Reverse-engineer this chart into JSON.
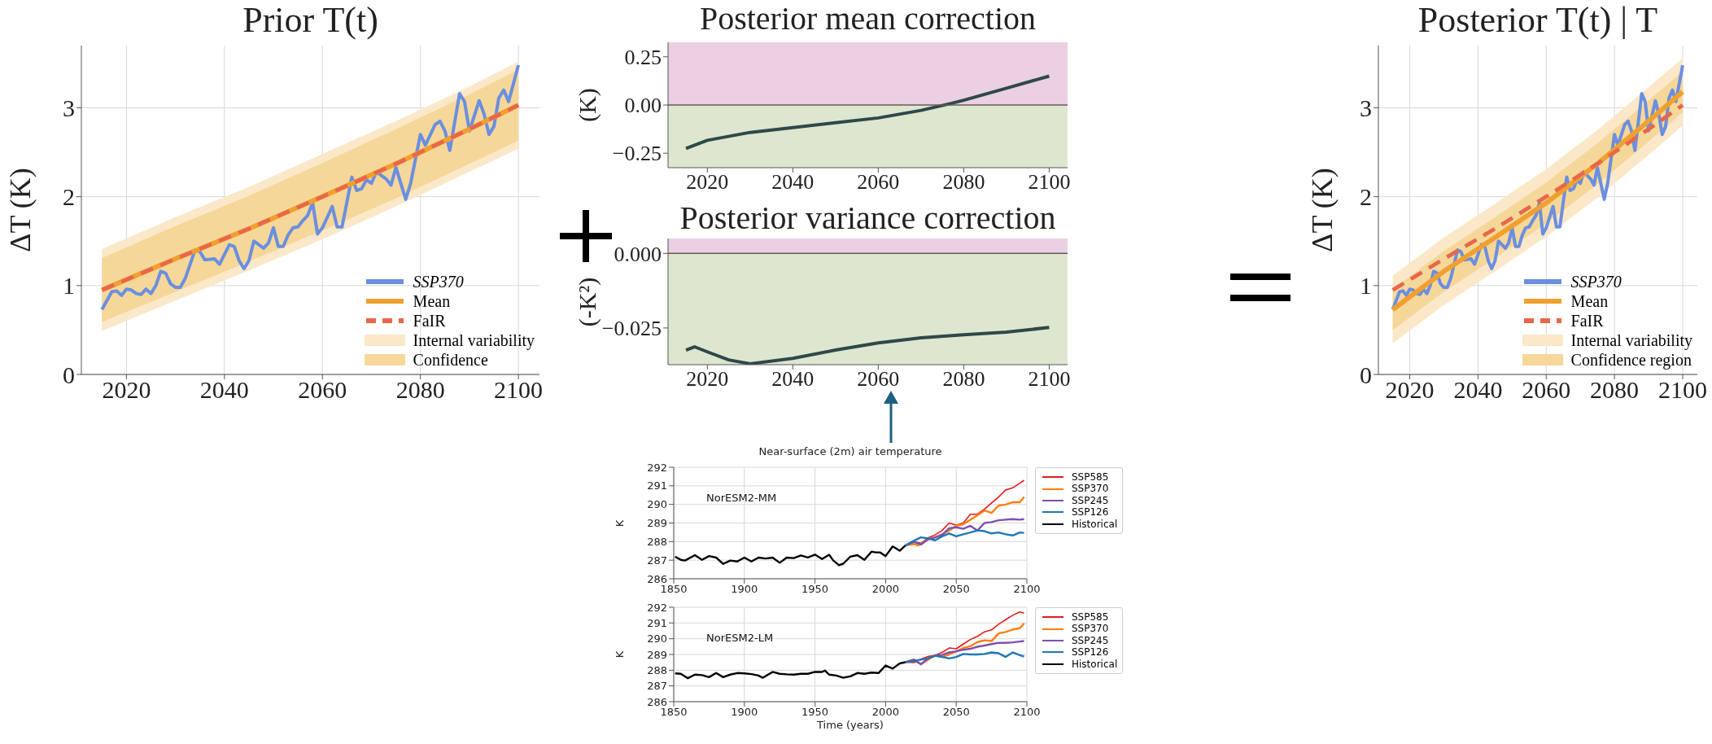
{
  "chart_data": [
    {
      "type": "line",
      "title": "Prior T(t)",
      "ylabel": "ΔT (K)",
      "xlim": [
        2010.8,
        2104.3
      ],
      "xticks": [
        2020,
        2040,
        2060,
        2080,
        2100
      ],
      "ylim": [
        0,
        3.7
      ],
      "yticks": [
        0,
        1,
        2,
        3
      ],
      "grid": true,
      "legend": "bottom right",
      "series": [
        {
          "name": "Internal variability",
          "type": "area",
          "color": "#fbe8c8",
          "x": [
            2015,
            2030,
            2045,
            2060,
            2075,
            2090,
            2100
          ],
          "values": [
            null,
            null,
            null,
            null,
            null,
            null,
            null
          ],
          "lower": [
            0.49,
            0.83,
            1.17,
            1.52,
            1.89,
            2.28,
            2.54
          ],
          "upper": [
            1.41,
            1.77,
            2.11,
            2.48,
            2.85,
            3.24,
            3.52
          ]
        },
        {
          "name": "Confidence",
          "type": "area",
          "color": "#f6d79a",
          "x": [
            2015,
            2030,
            2045,
            2060,
            2075,
            2090,
            2100
          ],
          "values": [
            null,
            null,
            null,
            null,
            null,
            null,
            null
          ],
          "lower": [
            0.59,
            0.93,
            1.27,
            1.62,
            1.98,
            2.37,
            2.63
          ],
          "upper": [
            1.31,
            1.67,
            2.01,
            2.38,
            2.76,
            3.15,
            3.43
          ]
        },
        {
          "name": "SSP370",
          "type": "line",
          "color": "#6a8fe0",
          "x": [
            2015,
            2017,
            2018,
            2019,
            2020,
            2021,
            2022,
            2023,
            2024,
            2025,
            2026,
            2027,
            2028,
            2029,
            2030,
            2031,
            2032,
            2034,
            2035,
            2036,
            2038,
            2039,
            2041,
            2042,
            2043,
            2044,
            2045,
            2046,
            2048,
            2049,
            2050,
            2051,
            2052,
            2053,
            2054,
            2055,
            2056,
            2057,
            2058,
            2059,
            2060,
            2061,
            2062,
            2063,
            2064,
            2066,
            2067,
            2068,
            2069,
            2070,
            2071,
            2073,
            2074,
            2075,
            2077,
            2078,
            2080,
            2081,
            2083,
            2084,
            2085,
            2086,
            2088,
            2089,
            2090,
            2092,
            2093,
            2094,
            2095,
            2096,
            2097,
            2098,
            2100
          ],
          "values": [
            0.73,
            0.93,
            0.94,
            0.89,
            0.96,
            0.95,
            0.91,
            0.9,
            0.96,
            0.91,
            1.0,
            1.16,
            1.14,
            1.02,
            0.98,
            0.98,
            1.08,
            1.4,
            1.38,
            1.29,
            1.3,
            1.24,
            1.46,
            1.44,
            1.28,
            1.19,
            1.28,
            1.5,
            1.42,
            1.48,
            1.65,
            1.44,
            1.44,
            1.57,
            1.65,
            1.66,
            1.73,
            1.79,
            1.93,
            1.58,
            1.65,
            1.77,
            1.89,
            1.66,
            1.66,
            2.22,
            2.07,
            2.09,
            2.19,
            2.15,
            2.28,
            2.2,
            2.13,
            2.33,
            1.97,
            2.15,
            2.7,
            2.58,
            2.81,
            2.85,
            2.74,
            2.52,
            3.16,
            3.07,
            2.74,
            3.08,
            2.93,
            2.7,
            2.79,
            3.11,
            3.2,
            3.07,
            3.48
          ]
        },
        {
          "name": "Mean",
          "type": "line",
          "color": "#f0a030",
          "x": [
            2015,
            2030,
            2045,
            2060,
            2075,
            2090,
            2100
          ],
          "values": [
            0.95,
            1.3,
            1.64,
            2.0,
            2.37,
            2.76,
            3.03
          ]
        },
        {
          "name": "FaIR",
          "type": "line",
          "line_style": "dashed",
          "color": "#e8674a",
          "x": [
            2015,
            2030,
            2045,
            2060,
            2075,
            2090,
            2100
          ],
          "values": [
            0.95,
            1.3,
            1.64,
            2.0,
            2.37,
            2.76,
            3.03
          ]
        }
      ]
    },
    {
      "type": "line",
      "title": "Posterior mean correction",
      "ylabel": "(K)",
      "xlim": [
        2010.8,
        2104.3
      ],
      "xticks": [
        2020,
        2040,
        2060,
        2080,
        2100
      ],
      "ylim": [
        -0.325,
        0.325
      ],
      "yticks": [
        {
          "value": -0.25,
          "label": "−0.25"
        },
        {
          "value": 0,
          "label": "0.00"
        },
        0.25
      ],
      "grid": true,
      "bands": [
        {
          "axis": "y",
          "from": 0,
          "to": 0.325,
          "color": "#ead0e2"
        },
        {
          "axis": "y",
          "from": -0.325,
          "to": 0,
          "color": "#dde7d0"
        }
      ],
      "ref_lines": [
        {
          "axis": "y",
          "value": 0,
          "color": "#6b5858"
        }
      ],
      "series": [
        {
          "type": "line",
          "color": "#2f4848",
          "x": [
            2015,
            2020,
            2030,
            2040,
            2050,
            2060,
            2070,
            2077,
            2080,
            2090,
            2100
          ],
          "values": [
            -0.225,
            -0.183,
            -0.142,
            -0.117,
            -0.092,
            -0.067,
            -0.028,
            0.008,
            0.025,
            0.087,
            0.15
          ]
        }
      ]
    },
    {
      "type": "line",
      "title": "Posterior variance correction",
      "ylabel": "(-K²)",
      "xlim": [
        2010.8,
        2104.3
      ],
      "xticks": [
        2020,
        2040,
        2060,
        2080,
        2100
      ],
      "ylim": [
        -0.0373,
        0.005
      ],
      "yticks": [
        {
          "value": -0.025,
          "label": "−0.025"
        },
        {
          "value": 0,
          "label": "0.000"
        }
      ],
      "grid": true,
      "bands": [
        {
          "axis": "y",
          "from": 0,
          "to": 0.005,
          "color": "#ead0e2"
        },
        {
          "axis": "y",
          "from": -0.0373,
          "to": 0,
          "color": "#dde7d0"
        }
      ],
      "ref_lines": [
        {
          "axis": "y",
          "value": 0,
          "color": "#6b5858"
        }
      ],
      "series": [
        {
          "type": "line",
          "color": "#2f4848",
          "x": [
            2015,
            2017,
            2020,
            2025,
            2030,
            2040,
            2050,
            2060,
            2070,
            2080,
            2090,
            2100
          ],
          "values": [
            -0.0324,
            -0.0313,
            -0.033,
            -0.0357,
            -0.037,
            -0.0352,
            -0.0324,
            -0.03,
            -0.0283,
            -0.0273,
            -0.0264,
            -0.0248
          ]
        }
      ]
    },
    {
      "type": "line",
      "title": "Posterior T(t) | T",
      "ylabel": "ΔT (K)",
      "xlim": [
        2010.8,
        2104.3
      ],
      "xticks": [
        2020,
        2040,
        2060,
        2080,
        2100
      ],
      "ylim": [
        0,
        3.7
      ],
      "yticks": [
        0,
        1,
        2,
        3
      ],
      "grid": true,
      "legend": "bottom right",
      "series": [
        {
          "name": "Internal variability",
          "type": "area",
          "color": "#fbe8c8",
          "x": [
            2015,
            2030,
            2045,
            2060,
            2075,
            2090,
            2100
          ],
          "values": [
            null,
            null,
            null,
            null,
            null,
            null,
            null
          ],
          "lower": [
            0.35,
            0.78,
            1.16,
            1.55,
            1.99,
            2.47,
            2.8
          ],
          "upper": [
            1.11,
            1.54,
            1.92,
            2.31,
            2.75,
            3.23,
            3.56
          ]
        },
        {
          "name": "Confidence region",
          "type": "area",
          "color": "#f6d79a",
          "x": [
            2015,
            2030,
            2045,
            2060,
            2075,
            2090,
            2100
          ],
          "values": [
            null,
            null,
            null,
            null,
            null,
            null,
            null
          ],
          "lower": [
            0.5,
            0.93,
            1.31,
            1.7,
            2.14,
            2.62,
            2.95
          ],
          "upper": [
            0.96,
            1.39,
            1.77,
            2.16,
            2.6,
            3.08,
            3.41
          ]
        },
        {
          "name": "SSP370",
          "type": "line",
          "color": "#6a8fe0",
          "x": [
            2015,
            2017,
            2018,
            2019,
            2020,
            2021,
            2022,
            2023,
            2024,
            2025,
            2026,
            2027,
            2028,
            2029,
            2030,
            2031,
            2032,
            2034,
            2035,
            2036,
            2038,
            2039,
            2041,
            2042,
            2043,
            2044,
            2045,
            2046,
            2048,
            2049,
            2050,
            2051,
            2052,
            2053,
            2054,
            2055,
            2056,
            2057,
            2058,
            2059,
            2060,
            2061,
            2062,
            2063,
            2064,
            2066,
            2067,
            2068,
            2069,
            2070,
            2071,
            2073,
            2074,
            2075,
            2077,
            2078,
            2080,
            2081,
            2083,
            2084,
            2085,
            2086,
            2088,
            2089,
            2090,
            2092,
            2093,
            2094,
            2095,
            2096,
            2097,
            2098,
            2100
          ],
          "values": [
            0.73,
            0.93,
            0.94,
            0.89,
            0.96,
            0.95,
            0.91,
            0.9,
            0.96,
            0.91,
            1.0,
            1.16,
            1.14,
            1.02,
            0.98,
            0.98,
            1.08,
            1.4,
            1.38,
            1.29,
            1.3,
            1.24,
            1.46,
            1.44,
            1.28,
            1.19,
            1.28,
            1.5,
            1.42,
            1.48,
            1.65,
            1.44,
            1.44,
            1.57,
            1.65,
            1.66,
            1.73,
            1.79,
            1.93,
            1.58,
            1.65,
            1.77,
            1.89,
            1.66,
            1.66,
            2.22,
            2.07,
            2.09,
            2.19,
            2.15,
            2.28,
            2.2,
            2.13,
            2.33,
            1.97,
            2.15,
            2.7,
            2.58,
            2.81,
            2.85,
            2.74,
            2.52,
            3.16,
            3.07,
            2.74,
            3.08,
            2.93,
            2.7,
            2.79,
            3.11,
            3.2,
            3.07,
            3.48
          ]
        },
        {
          "name": "Mean",
          "type": "line",
          "color": "#f0a030",
          "x": [
            2015,
            2030,
            2045,
            2060,
            2075,
            2090,
            2100
          ],
          "values": [
            0.73,
            1.16,
            1.54,
            1.93,
            2.37,
            2.85,
            3.18
          ]
        },
        {
          "name": "FaIR",
          "type": "line",
          "line_style": "dashed",
          "color": "#e8674a",
          "x": [
            2015,
            2030,
            2045,
            2060,
            2075,
            2090,
            2100
          ],
          "values": [
            0.95,
            1.3,
            1.64,
            2.0,
            2.37,
            2.76,
            3.03
          ]
        }
      ]
    },
    {
      "type": "line",
      "title": "Near-surface (2m) air temperature",
      "ylabel": "K",
      "xlim": [
        1850,
        2100
      ],
      "xticks": [
        1850,
        1900,
        1950,
        2000,
        2050,
        2100
      ],
      "ylim": [
        286,
        292
      ],
      "yticks": [
        286,
        287,
        288,
        289,
        290,
        291,
        292
      ],
      "grid": true,
      "legend": "right",
      "annotations": [
        "NorESM2-MM"
      ],
      "series": [
        {
          "name": "SSP585",
          "type": "line",
          "color": "#e41a1c",
          "x": [
            2014,
            2020,
            2025,
            2030,
            2035,
            2040,
            2045,
            2050,
            2055,
            2060,
            2065,
            2070,
            2075,
            2080,
            2085,
            2090,
            2095,
            2098
          ],
          "values": [
            287.79,
            287.99,
            287.91,
            288.2,
            288.36,
            288.6,
            289.0,
            288.88,
            289.0,
            289.47,
            289.47,
            289.75,
            290.08,
            290.4,
            290.78,
            290.89,
            291.14,
            291.3
          ]
        },
        {
          "name": "SSP370",
          "type": "line",
          "color": "#ff7f0e",
          "x": [
            2014,
            2020,
            2023,
            2030,
            2035,
            2040,
            2045,
            2050,
            2055,
            2060,
            2065,
            2070,
            2075,
            2080,
            2085,
            2090,
            2095,
            2098
          ],
          "values": [
            287.79,
            287.87,
            287.79,
            288.12,
            288.23,
            288.39,
            288.6,
            288.85,
            288.93,
            289.18,
            289.42,
            289.67,
            289.54,
            289.94,
            289.99,
            290.12,
            290.12,
            290.4
          ]
        },
        {
          "name": "SSP245",
          "type": "line",
          "color": "#7e4fb0",
          "x": [
            2014,
            2020,
            2025,
            2030,
            2035,
            2040,
            2045,
            2050,
            2055,
            2060,
            2065,
            2070,
            2075,
            2080,
            2085,
            2090,
            2095,
            2098
          ],
          "values": [
            287.79,
            287.99,
            287.84,
            288.12,
            288.23,
            288.36,
            288.72,
            288.77,
            288.69,
            288.85,
            288.6,
            289.0,
            289.05,
            289.15,
            289.18,
            289.21,
            289.18,
            289.21
          ]
        },
        {
          "name": "SSP126",
          "type": "line",
          "color": "#1f77b4",
          "x": [
            2014,
            2020,
            2025,
            2030,
            2035,
            2040,
            2045,
            2050,
            2055,
            2060,
            2065,
            2070,
            2075,
            2080,
            2085,
            2090,
            2095,
            2098
          ],
          "values": [
            287.79,
            288.04,
            288.23,
            288.17,
            288.07,
            288.28,
            288.44,
            288.28,
            288.39,
            288.49,
            288.6,
            288.56,
            288.44,
            288.49,
            288.39,
            288.33,
            288.49,
            288.47
          ]
        },
        {
          "name": "Historical",
          "type": "line",
          "color": "#000000",
          "x": [
            1851,
            1855,
            1858,
            1865,
            1870,
            1875,
            1880,
            1885,
            1890,
            1895,
            1900,
            1905,
            1910,
            1915,
            1920,
            1925,
            1930,
            1935,
            1940,
            1945,
            1950,
            1955,
            1960,
            1963,
            1967,
            1970,
            1975,
            1980,
            1985,
            1990,
            1993,
            1996,
            2000,
            2005,
            2010,
            2014
          ],
          "values": [
            287.19,
            287.02,
            286.98,
            287.27,
            287.02,
            287.22,
            287.14,
            286.8,
            286.98,
            286.93,
            287.14,
            286.93,
            287.14,
            287.09,
            287.14,
            286.86,
            287.14,
            287.11,
            287.25,
            287.14,
            287.3,
            287.06,
            287.29,
            286.98,
            286.73,
            286.81,
            287.19,
            287.27,
            287.02,
            287.46,
            287.42,
            287.42,
            287.22,
            287.74,
            287.51,
            287.79
          ]
        }
      ]
    },
    {
      "type": "line",
      "xlabel": "Time (years)",
      "ylabel": "K",
      "xlim": [
        1850,
        2100
      ],
      "xticks": [
        1850,
        1900,
        1950,
        2000,
        2050,
        2100
      ],
      "ylim": [
        286,
        292
      ],
      "yticks": [
        286,
        287,
        288,
        289,
        290,
        291,
        292
      ],
      "grid": true,
      "legend": "right",
      "annotations": [
        "NorESM2-LM"
      ],
      "series": [
        {
          "name": "SSP585",
          "type": "line",
          "color": "#e41a1c",
          "x": [
            2014,
            2020,
            2025,
            2030,
            2035,
            2040,
            2045,
            2050,
            2055,
            2060,
            2065,
            2070,
            2075,
            2080,
            2085,
            2090,
            2095,
            2098
          ],
          "values": [
            288.51,
            288.48,
            288.7,
            288.87,
            288.95,
            289.13,
            289.41,
            289.36,
            289.66,
            289.95,
            290.15,
            290.44,
            290.56,
            290.92,
            291.21,
            291.49,
            291.7,
            291.62
          ]
        },
        {
          "name": "SSP370",
          "type": "line",
          "color": "#ff7f0e",
          "x": [
            2014,
            2020,
            2025,
            2030,
            2035,
            2040,
            2045,
            2050,
            2055,
            2060,
            2065,
            2070,
            2075,
            2080,
            2085,
            2090,
            2095,
            2098
          ],
          "values": [
            288.51,
            288.67,
            288.38,
            288.67,
            288.95,
            288.84,
            289.0,
            289.2,
            289.41,
            289.52,
            289.79,
            289.9,
            289.85,
            290.34,
            290.43,
            290.59,
            290.67,
            290.97
          ]
        },
        {
          "name": "SSP245",
          "type": "line",
          "color": "#7e4fb0",
          "x": [
            2014,
            2020,
            2025,
            2030,
            2035,
            2040,
            2045,
            2050,
            2055,
            2060,
            2065,
            2070,
            2075,
            2080,
            2085,
            2090,
            2095,
            2098
          ],
          "values": [
            288.51,
            288.67,
            288.38,
            288.75,
            288.92,
            288.97,
            289.13,
            289.2,
            289.3,
            289.36,
            289.49,
            289.57,
            289.66,
            289.74,
            289.74,
            289.77,
            289.82,
            289.85
          ]
        },
        {
          "name": "SSP126",
          "type": "line",
          "color": "#1f77b4",
          "x": [
            2014,
            2020,
            2025,
            2030,
            2035,
            2040,
            2045,
            2050,
            2055,
            2060,
            2065,
            2070,
            2075,
            2080,
            2085,
            2090,
            2095,
            2098
          ],
          "values": [
            288.51,
            288.59,
            288.67,
            288.75,
            288.92,
            288.84,
            288.75,
            288.84,
            289.03,
            289.0,
            289.0,
            289.03,
            289.13,
            289.08,
            288.84,
            289.13,
            288.95,
            288.87
          ]
        },
        {
          "name": "Historical",
          "type": "line",
          "color": "#000000",
          "x": [
            1851,
            1855,
            1860,
            1865,
            1870,
            1875,
            1880,
            1885,
            1890,
            1895,
            1900,
            1905,
            1910,
            1913,
            1920,
            1925,
            1930,
            1935,
            1940,
            1945,
            1950,
            1955,
            1957,
            1960,
            1965,
            1970,
            1975,
            1980,
            1985,
            1990,
            1995,
            2000,
            2005,
            2010,
            2014
          ],
          "values": [
            287.8,
            287.77,
            287.49,
            287.72,
            287.69,
            287.56,
            287.82,
            287.56,
            287.72,
            287.82,
            287.8,
            287.75,
            287.66,
            287.52,
            287.89,
            287.77,
            287.74,
            287.72,
            287.77,
            287.77,
            287.89,
            287.89,
            287.98,
            287.72,
            287.66,
            287.52,
            287.61,
            287.82,
            287.77,
            287.85,
            287.82,
            288.3,
            288.1,
            288.43,
            288.51
          ]
        }
      ]
    }
  ]
}
